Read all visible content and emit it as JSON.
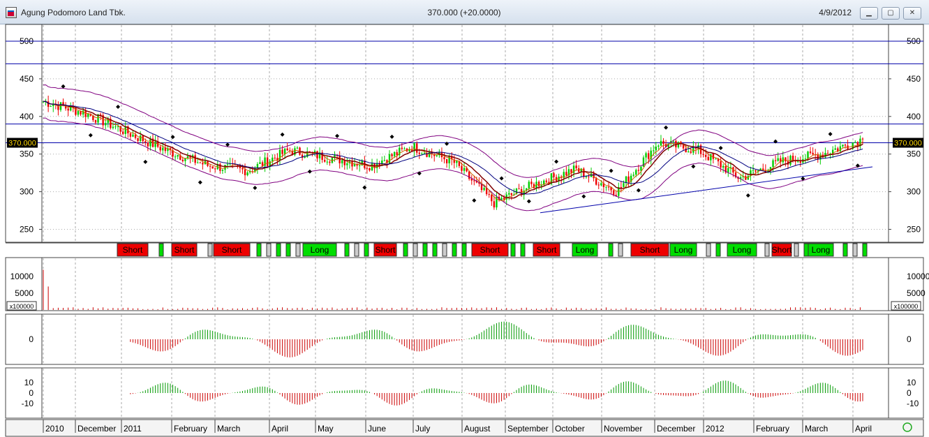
{
  "window": {
    "title": "Agung Podomoro Land Tbk.",
    "price_text": "370.000 (+20.0000)",
    "date": "4/9/2012",
    "minimize_icon": "minimize-icon",
    "maximize_icon": "maximize-icon",
    "close_icon": "close-icon"
  },
  "chart_data": {
    "type": "candlestick",
    "price_axis": {
      "ticks": [
        250,
        300,
        350,
        400,
        450,
        500
      ],
      "range": [
        230,
        525
      ]
    },
    "current_price_label": "370.000",
    "hlines": [
      500,
      470,
      390,
      365
    ],
    "trendline": {
      "from": [
        "Sep 2011",
        272
      ],
      "to": [
        "Apr 2012",
        333
      ]
    },
    "time_labels": [
      "2010",
      "December",
      "2011",
      "February",
      "March",
      "April",
      "May",
      "June",
      "July",
      "August",
      "September",
      "October",
      "November",
      "December",
      "2012",
      "February",
      "March",
      "April"
    ],
    "close_profile": [
      [
        "2010",
        420
      ],
      [
        "Dec 2010",
        405
      ],
      [
        "2011",
        380
      ],
      [
        "Feb 2011",
        355
      ],
      [
        "Mar 2011",
        335
      ],
      [
        "Apr 2011",
        328
      ],
      [
        "May 2011",
        355
      ],
      [
        "Jun 2011",
        345
      ],
      [
        "Jul 2011",
        335
      ],
      [
        "Aug 2011",
        360
      ],
      [
        "Sep 2011",
        340
      ],
      [
        "Sep 2011 low",
        285
      ],
      [
        "Oct 2011",
        310
      ],
      [
        "Nov 2011",
        330
      ],
      [
        "Dec 2011",
        300
      ],
      [
        "Dec 2011 high",
        365
      ],
      [
        "2012",
        355
      ],
      [
        "Feb 2012",
        318
      ],
      [
        "Mar 2012",
        340
      ],
      [
        "Apr 2012",
        350
      ],
      [
        "last",
        370
      ]
    ],
    "signals": [
      {
        "label": "Short",
        "color": "#ee0000"
      },
      {
        "label": "Short",
        "color": "#ee0000"
      },
      {
        "label": "Short",
        "color": "#ee0000"
      },
      {
        "label": "Long",
        "color": "#00dd00"
      },
      {
        "label": "Short",
        "color": "#ee0000"
      },
      {
        "label": "Short",
        "color": "#ee0000"
      },
      {
        "label": "Short",
        "color": "#ee0000"
      },
      {
        "label": "Long",
        "color": "#00dd00"
      },
      {
        "label": "Short",
        "color": "#ee0000"
      },
      {
        "label": "Long",
        "color": "#00dd00"
      },
      {
        "label": "Long",
        "color": "#00dd00"
      },
      {
        "label": "Short",
        "color": "#ee0000"
      },
      {
        "label": "Long",
        "color": "#00dd00"
      }
    ],
    "volume_panel": {
      "ticks": [
        5000,
        10000
      ],
      "multiplier_label": "x100000"
    },
    "oscillator1": {
      "ticks": [
        0
      ]
    },
    "oscillator2": {
      "ticks": [
        10,
        0,
        -10
      ]
    },
    "colors": {
      "up": "#00cc00",
      "down": "#ee0000",
      "band": "#800080",
      "line": "#0000aa"
    }
  },
  "status": {
    "smiley_icon": "smiley-icon"
  }
}
